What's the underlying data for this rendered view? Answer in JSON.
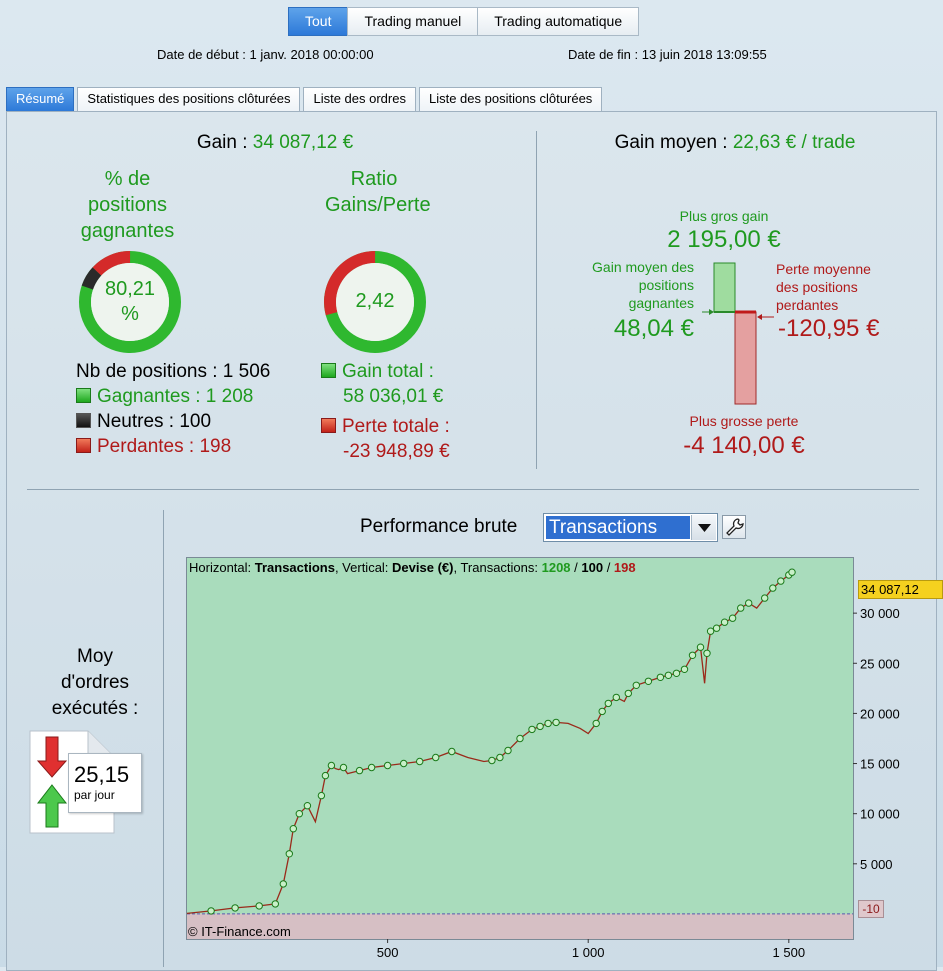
{
  "top_tabs": [
    {
      "label": "Tout",
      "active": true
    },
    {
      "label": "Trading manuel",
      "active": false
    },
    {
      "label": "Trading automatique",
      "active": false
    }
  ],
  "dates": {
    "start": "Date de début : 1 janv. 2018 00:00:00",
    "end": "Date de fin : 13 juin 2018 13:09:55"
  },
  "sub_tabs": [
    {
      "label": "Résumé",
      "active": true
    },
    {
      "label": "Statistiques des positions clôturées",
      "active": false
    },
    {
      "label": "Liste des ordres",
      "active": false
    },
    {
      "label": "Liste des positions clôturées",
      "active": false
    }
  ],
  "summary": {
    "gain_label": "Gain :",
    "gain_value": "34 087,12 €",
    "pct_title_1": "% de",
    "pct_title_2": "positions",
    "pct_title_3": "gagnantes",
    "pct_value_1": "80,21",
    "pct_value_2": "%",
    "pct_fraction": 0.8021,
    "neutral_fraction": 0.0664,
    "ratio_title_1": "Ratio",
    "ratio_title_2": "Gains/Perte",
    "ratio_value": "2,42",
    "ratio_fraction": 0.708,
    "nb_positions": "Nb de positions : 1 506",
    "gagnantes": "Gagnantes : 1 208",
    "neutres": "Neutres : 100",
    "perdantes": "Perdantes : 198",
    "gain_total_label": "Gain total :",
    "gain_total_value": "58 036,01 €",
    "perte_totale_label": "Perte totale :",
    "perte_totale_value": "-23 948,89 €"
  },
  "averages": {
    "gain_moyen_label": "Gain moyen :",
    "gain_moyen_value": "22,63 € / trade",
    "plus_gros_gain_label": "Plus gros gain",
    "plus_gros_gain_value": "2 195,00 €",
    "gain_moyen_pos_1": "Gain moyen des",
    "gain_moyen_pos_2": "positions",
    "gain_moyen_pos_3": "gagnantes",
    "gain_moyen_pos_value": "48,04 €",
    "perte_moyenne_1": "Perte moyenne",
    "perte_moyenne_2": "des positions",
    "perte_moyenne_3": "perdantes",
    "perte_moyenne_value": "-120,95 €",
    "plus_grosse_perte_label": "Plus grosse perte",
    "plus_grosse_perte_value": "-4 140,00 €"
  },
  "orders": {
    "title_1": "Moy",
    "title_2": "d'ordres",
    "title_3": "exécutés :",
    "value": "25,15",
    "unit": "par jour"
  },
  "performance": {
    "title": "Performance brute",
    "select_value": "Transactions",
    "header_h": "Horizontal: ",
    "header_h_val": "Transactions",
    "header_v": ", Vertical: ",
    "header_v_val": "Devise (€)",
    "header_t": ", Transactions: ",
    "header_win": "1208",
    "header_sep1": " / ",
    "header_neutral": "100",
    "header_sep2": " / ",
    "header_loss": "198",
    "copyright": "© IT-Finance.com",
    "current_label": "34 087,12",
    "zero_label": "-10"
  },
  "colors": {
    "green": "#1f9a1f",
    "red": "#b01a1a",
    "accent": "#2d79d8",
    "chart_positive": "#a9dcbc",
    "chart_negative": "#d6bfc4"
  },
  "chart_data": {
    "type": "line",
    "xlabel": "",
    "ylabel": "",
    "xlim": [
      0,
      1660
    ],
    "ylim": [
      -2500,
      35500
    ],
    "x_ticks": [
      500,
      1000,
      1500
    ],
    "x_tick_labels": [
      "500",
      "1 000",
      "1 500"
    ],
    "y_ticks": [
      5000,
      10000,
      15000,
      20000,
      25000,
      30000
    ],
    "y_tick_labels": [
      "5 000",
      "10 000",
      "15 000",
      "20 000",
      "25 000",
      "30 000"
    ],
    "series": [
      {
        "x": [
          0,
          60,
          120,
          180,
          220,
          240,
          255,
          265,
          280,
          300,
          320,
          335,
          345,
          360,
          370,
          378,
          390,
          400,
          430,
          460,
          500,
          540,
          580,
          620,
          660,
          700,
          740,
          760,
          780,
          800,
          830,
          860,
          880,
          900,
          920,
          950,
          980,
          1000,
          1020,
          1035,
          1050,
          1070,
          1090,
          1100,
          1120,
          1150,
          1180,
          1200,
          1220,
          1240,
          1260,
          1280,
          1290,
          1296,
          1305,
          1320,
          1340,
          1360,
          1380,
          1400,
          1420,
          1440,
          1460,
          1480,
          1500,
          1508
        ],
        "y": [
          50,
          300,
          600,
          800,
          1000,
          3000,
          6000,
          8500,
          10000,
          10800,
          9200,
          11800,
          13800,
          14800,
          14500,
          14400,
          14600,
          14000,
          14300,
          14600,
          14800,
          15000,
          15200,
          15600,
          16200,
          15600,
          15200,
          15300,
          15600,
          16300,
          17500,
          18400,
          18700,
          19000,
          19100,
          19000,
          18500,
          18000,
          19000,
          20200,
          21000,
          21600,
          21200,
          22000,
          22800,
          23200,
          23600,
          23800,
          24000,
          24400,
          25800,
          26600,
          23000,
          26000,
          28200,
          28500,
          29100,
          29500,
          30500,
          31000,
          30500,
          31500,
          32500,
          33200,
          33800,
          34087
        ]
      }
    ]
  }
}
